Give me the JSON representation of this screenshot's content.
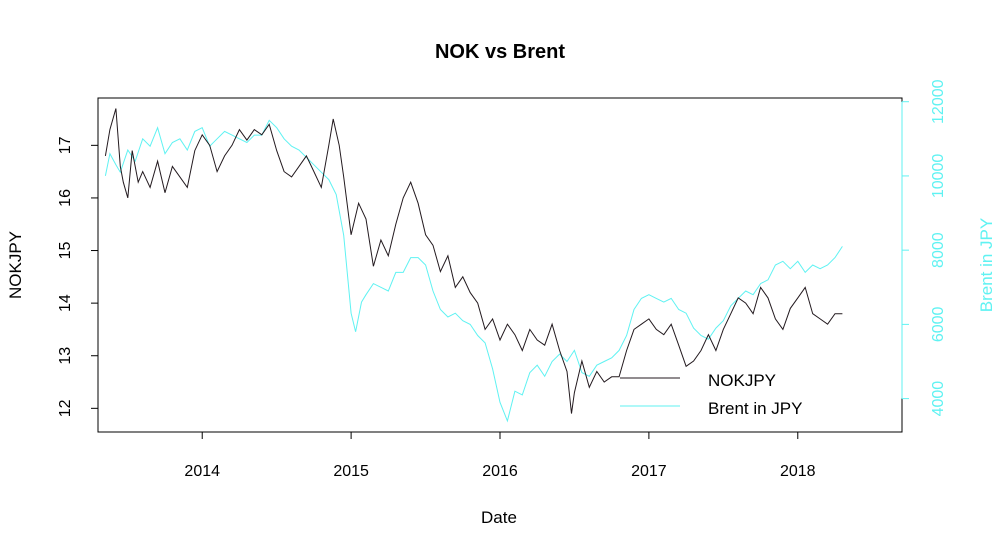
{
  "chart_data": {
    "type": "line",
    "title": "NOK vs Brent",
    "xlabel": "Date",
    "ylabel": "NOKJPY",
    "ylabel_right": "Brent in JPY",
    "x_ticks": [
      "2014",
      "2015",
      "2016",
      "2017",
      "2018"
    ],
    "xlim": [
      2013.3,
      2018.7
    ],
    "ylim": [
      11.55,
      17.9
    ],
    "y_ticks": [
      12,
      13,
      14,
      15,
      16,
      17
    ],
    "ylim_right": [
      3100,
      12100
    ],
    "y_ticks_right": [
      4000,
      6000,
      8000,
      10000,
      12000
    ],
    "grid": false,
    "legend_position": "bottom-right",
    "colors": {
      "nok": "#231a1f",
      "brent": "#5ff2f2",
      "axis": "#000000"
    },
    "series": [
      {
        "name": "NOKJPY",
        "axis": "left",
        "x": [
          2013.35,
          2013.38,
          2013.42,
          2013.45,
          2013.47,
          2013.5,
          2013.53,
          2013.57,
          2013.6,
          2013.65,
          2013.7,
          2013.75,
          2013.8,
          2013.85,
          2013.9,
          2013.95,
          2014.0,
          2014.05,
          2014.1,
          2014.15,
          2014.2,
          2014.25,
          2014.3,
          2014.35,
          2014.4,
          2014.45,
          2014.5,
          2014.55,
          2014.6,
          2014.65,
          2014.7,
          2014.75,
          2014.8,
          2014.85,
          2014.88,
          2014.92,
          2014.95,
          2015.0,
          2015.05,
          2015.1,
          2015.15,
          2015.2,
          2015.25,
          2015.3,
          2015.35,
          2015.4,
          2015.45,
          2015.5,
          2015.55,
          2015.6,
          2015.65,
          2015.7,
          2015.75,
          2015.8,
          2015.85,
          2015.9,
          2015.95,
          2016.0,
          2016.05,
          2016.1,
          2016.15,
          2016.2,
          2016.25,
          2016.3,
          2016.35,
          2016.4,
          2016.45,
          2016.48,
          2016.5,
          2016.55,
          2016.6,
          2016.65,
          2016.7,
          2016.75,
          2016.8,
          2016.85,
          2016.9,
          2016.95,
          2017.0,
          2017.05,
          2017.1,
          2017.15,
          2017.2,
          2017.25,
          2017.3,
          2017.35,
          2017.4,
          2017.45,
          2017.5,
          2017.55,
          2017.6,
          2017.65,
          2017.7,
          2017.75,
          2017.8,
          2017.85,
          2017.9,
          2017.95,
          2018.0,
          2018.05,
          2018.1,
          2018.15,
          2018.2,
          2018.25,
          2018.3
        ],
        "values": [
          16.8,
          17.3,
          17.7,
          16.6,
          16.3,
          16.0,
          16.9,
          16.3,
          16.5,
          16.2,
          16.7,
          16.1,
          16.6,
          16.4,
          16.2,
          16.9,
          17.2,
          17.0,
          16.5,
          16.8,
          17.0,
          17.3,
          17.1,
          17.3,
          17.2,
          17.4,
          16.9,
          16.5,
          16.4,
          16.6,
          16.8,
          16.5,
          16.2,
          17.0,
          17.5,
          17.0,
          16.4,
          15.3,
          15.9,
          15.6,
          14.7,
          15.2,
          14.9,
          15.5,
          16.0,
          16.3,
          15.9,
          15.3,
          15.1,
          14.6,
          14.9,
          14.3,
          14.5,
          14.2,
          14.0,
          13.5,
          13.7,
          13.3,
          13.6,
          13.4,
          13.1,
          13.5,
          13.3,
          13.2,
          13.6,
          13.1,
          12.7,
          11.9,
          12.3,
          12.9,
          12.4,
          12.7,
          12.5,
          12.6,
          12.6,
          13.1,
          13.5,
          13.6,
          13.7,
          13.5,
          13.4,
          13.6,
          13.2,
          12.8,
          12.9,
          13.1,
          13.4,
          13.1,
          13.5,
          13.8,
          14.1,
          14.0,
          13.8,
          14.3,
          14.1,
          13.7,
          13.5,
          13.9,
          14.1,
          14.3,
          13.8,
          13.7,
          13.6,
          13.8,
          13.8
        ]
      },
      {
        "name": "Brent in JPY",
        "axis": "right",
        "x": [
          2013.35,
          2013.38,
          2013.42,
          2013.45,
          2013.5,
          2013.55,
          2013.6,
          2013.65,
          2013.7,
          2013.75,
          2013.8,
          2013.85,
          2013.9,
          2013.95,
          2014.0,
          2014.05,
          2014.1,
          2014.15,
          2014.2,
          2014.25,
          2014.3,
          2014.35,
          2014.4,
          2014.45,
          2014.5,
          2014.55,
          2014.6,
          2014.65,
          2014.7,
          2014.75,
          2014.8,
          2014.85,
          2014.9,
          2014.95,
          2015.0,
          2015.03,
          2015.07,
          2015.1,
          2015.15,
          2015.2,
          2015.25,
          2015.3,
          2015.35,
          2015.4,
          2015.45,
          2015.5,
          2015.55,
          2015.6,
          2015.65,
          2015.7,
          2015.75,
          2015.8,
          2015.85,
          2015.9,
          2015.95,
          2016.0,
          2016.05,
          2016.1,
          2016.15,
          2016.2,
          2016.25,
          2016.3,
          2016.35,
          2016.4,
          2016.45,
          2016.5,
          2016.55,
          2016.6,
          2016.65,
          2016.7,
          2016.75,
          2016.8,
          2016.85,
          2016.9,
          2016.95,
          2017.0,
          2017.05,
          2017.1,
          2017.15,
          2017.2,
          2017.25,
          2017.3,
          2017.35,
          2017.4,
          2017.45,
          2017.5,
          2017.55,
          2017.6,
          2017.65,
          2017.7,
          2017.75,
          2017.8,
          2017.85,
          2017.9,
          2017.95,
          2018.0,
          2018.05,
          2018.1,
          2018.15,
          2018.2,
          2018.25,
          2018.3
        ],
        "values": [
          10000,
          10600,
          10300,
          10100,
          10700,
          10400,
          11000,
          10800,
          11300,
          10600,
          10900,
          11000,
          10700,
          11200,
          11300,
          10800,
          11000,
          11200,
          11100,
          11000,
          10900,
          11100,
          11100,
          11500,
          11300,
          11000,
          10800,
          10700,
          10500,
          10300,
          10100,
          9900,
          9500,
          8400,
          6300,
          5800,
          6600,
          6800,
          7100,
          7000,
          6900,
          7400,
          7400,
          7800,
          7800,
          7600,
          6900,
          6400,
          6200,
          6300,
          6100,
          6000,
          5700,
          5500,
          4800,
          3900,
          3400,
          4200,
          4100,
          4700,
          4900,
          4600,
          5000,
          5200,
          5000,
          5300,
          4700,
          4600,
          4900,
          5000,
          5100,
          5300,
          5700,
          6400,
          6700,
          6800,
          6700,
          6600,
          6700,
          6400,
          6300,
          5900,
          5700,
          5600,
          5900,
          6100,
          6500,
          6700,
          6900,
          6800,
          7100,
          7200,
          7600,
          7700,
          7500,
          7700,
          7400,
          7600,
          7500,
          7600,
          7800,
          8100
        ]
      }
    ]
  }
}
